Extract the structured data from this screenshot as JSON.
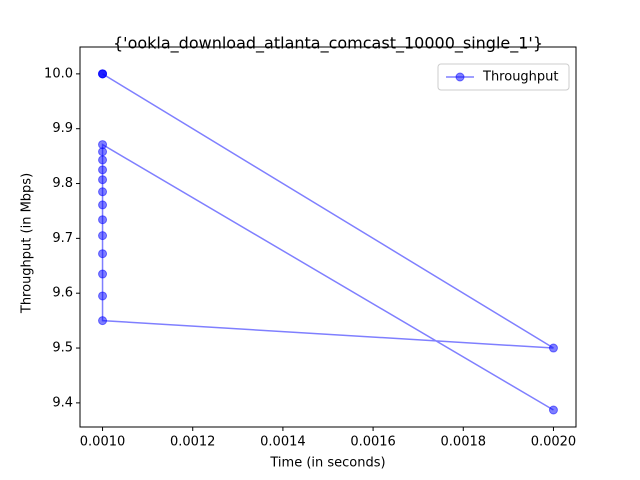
{
  "chart_data": {
    "type": "line",
    "title": "{'ookla_download_atlanta_comcast_10000_single_1'}",
    "x_label": "Time (in seconds)",
    "y_label": "Throughput (in Mbps)",
    "x": [
      0.001,
      0.001,
      0.001,
      0.002,
      0.001,
      0.001,
      0.001,
      0.001,
      0.001,
      0.001,
      0.001,
      0.001,
      0.001,
      0.001,
      0.001,
      0.001,
      0.001,
      0.002
    ],
    "series": [
      {
        "name": "Throughput",
        "color": "#0000ff",
        "values": [
          10.0,
          10.0,
          10.0,
          9.5,
          9.55,
          9.595,
          9.635,
          9.672,
          9.705,
          9.734,
          9.761,
          9.785,
          9.807,
          9.825,
          9.843,
          9.858,
          9.871,
          9.387
        ]
      }
    ],
    "xlim": [
      0.00095,
      0.00205
    ],
    "xticks": [
      {
        "value": 0.001,
        "label": "0.0010"
      },
      {
        "value": 0.0012,
        "label": "0.0012"
      },
      {
        "value": 0.0014,
        "label": "0.0014"
      },
      {
        "value": 0.0016,
        "label": "0.0016"
      },
      {
        "value": 0.0018,
        "label": "0.0018"
      },
      {
        "value": 0.002,
        "label": "0.0020"
      }
    ],
    "ylim": [
      9.356,
      10.049
    ],
    "yticks": [
      {
        "value": 9.4,
        "label": "9.4"
      },
      {
        "value": 9.5,
        "label": "9.5"
      },
      {
        "value": 9.6,
        "label": "9.6"
      },
      {
        "value": 9.7,
        "label": "9.7"
      },
      {
        "value": 9.8,
        "label": "9.8"
      },
      {
        "value": 9.9,
        "label": "9.9"
      },
      {
        "value": 10.0,
        "label": "10.0"
      }
    ],
    "legend": "upper right",
    "grid": false
  }
}
